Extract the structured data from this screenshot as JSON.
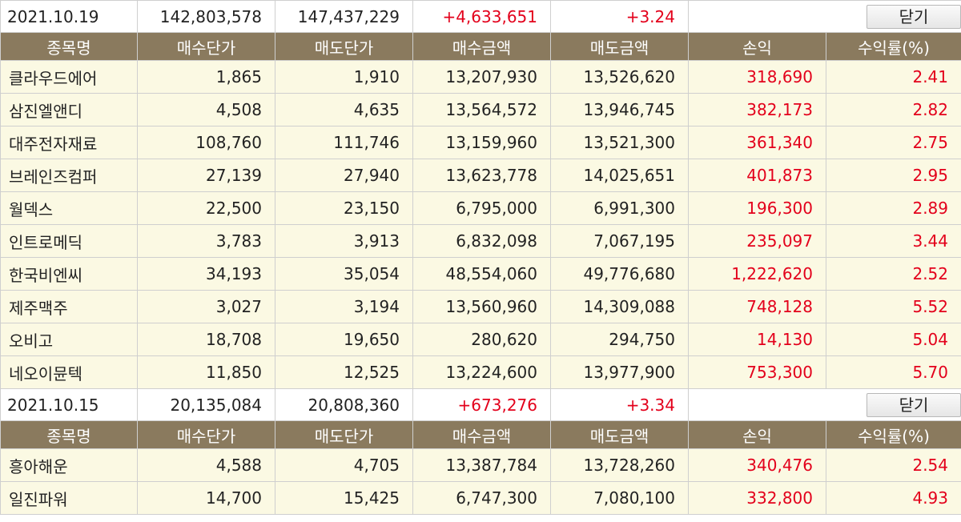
{
  "headers": [
    "종목명",
    "매수단가",
    "매도단가",
    "매수금액",
    "매도금액",
    "손익",
    "수익률(%)"
  ],
  "groups": [
    {
      "summary": {
        "date": "2021.10.19",
        "buy_total": "142,803,578",
        "sell_total": "147,437,229",
        "profit": "+4,633,651",
        "rate": "+3.24",
        "close_label": "닫기"
      },
      "rows": [
        {
          "name": "클라우드에어",
          "buy_price": "1,865",
          "sell_price": "1,910",
          "buy_amount": "13,207,930",
          "sell_amount": "13,526,620",
          "profit": "318,690",
          "rate": "2.41"
        },
        {
          "name": "삼진엘앤디",
          "buy_price": "4,508",
          "sell_price": "4,635",
          "buy_amount": "13,564,572",
          "sell_amount": "13,946,745",
          "profit": "382,173",
          "rate": "2.82"
        },
        {
          "name": "대주전자재료",
          "buy_price": "108,760",
          "sell_price": "111,746",
          "buy_amount": "13,159,960",
          "sell_amount": "13,521,300",
          "profit": "361,340",
          "rate": "2.75"
        },
        {
          "name": "브레인즈컴퍼",
          "buy_price": "27,139",
          "sell_price": "27,940",
          "buy_amount": "13,623,778",
          "sell_amount": "14,025,651",
          "profit": "401,873",
          "rate": "2.95"
        },
        {
          "name": "월덱스",
          "buy_price": "22,500",
          "sell_price": "23,150",
          "buy_amount": "6,795,000",
          "sell_amount": "6,991,300",
          "profit": "196,300",
          "rate": "2.89"
        },
        {
          "name": "인트로메딕",
          "buy_price": "3,783",
          "sell_price": "3,913",
          "buy_amount": "6,832,098",
          "sell_amount": "7,067,195",
          "profit": "235,097",
          "rate": "3.44"
        },
        {
          "name": "한국비엔씨",
          "buy_price": "34,193",
          "sell_price": "35,054",
          "buy_amount": "48,554,060",
          "sell_amount": "49,776,680",
          "profit": "1,222,620",
          "rate": "2.52"
        },
        {
          "name": "제주맥주",
          "buy_price": "3,027",
          "sell_price": "3,194",
          "buy_amount": "13,560,960",
          "sell_amount": "14,309,088",
          "profit": "748,128",
          "rate": "5.52"
        },
        {
          "name": "오비고",
          "buy_price": "18,708",
          "sell_price": "19,650",
          "buy_amount": "280,620",
          "sell_amount": "294,750",
          "profit": "14,130",
          "rate": "5.04"
        },
        {
          "name": "네오이뮨텍",
          "buy_price": "11,850",
          "sell_price": "12,525",
          "buy_amount": "13,224,600",
          "sell_amount": "13,977,900",
          "profit": "753,300",
          "rate": "5.70"
        }
      ]
    },
    {
      "summary": {
        "date": "2021.10.15",
        "buy_total": "20,135,084",
        "sell_total": "20,808,360",
        "profit": "+673,276",
        "rate": "+3.34",
        "close_label": "닫기"
      },
      "rows": [
        {
          "name": "흥아해운",
          "buy_price": "4,588",
          "sell_price": "4,705",
          "buy_amount": "13,387,784",
          "sell_amount": "13,728,260",
          "profit": "340,476",
          "rate": "2.54"
        },
        {
          "name": "일진파워",
          "buy_price": "14,700",
          "sell_price": "15,425",
          "buy_amount": "6,747,300",
          "sell_amount": "7,080,100",
          "profit": "332,800",
          "rate": "4.93"
        }
      ]
    }
  ],
  "colors": {
    "header_bg": "#8a7a5e",
    "row_bg": "#fbf9e3",
    "profit_red": "#e3001b"
  }
}
